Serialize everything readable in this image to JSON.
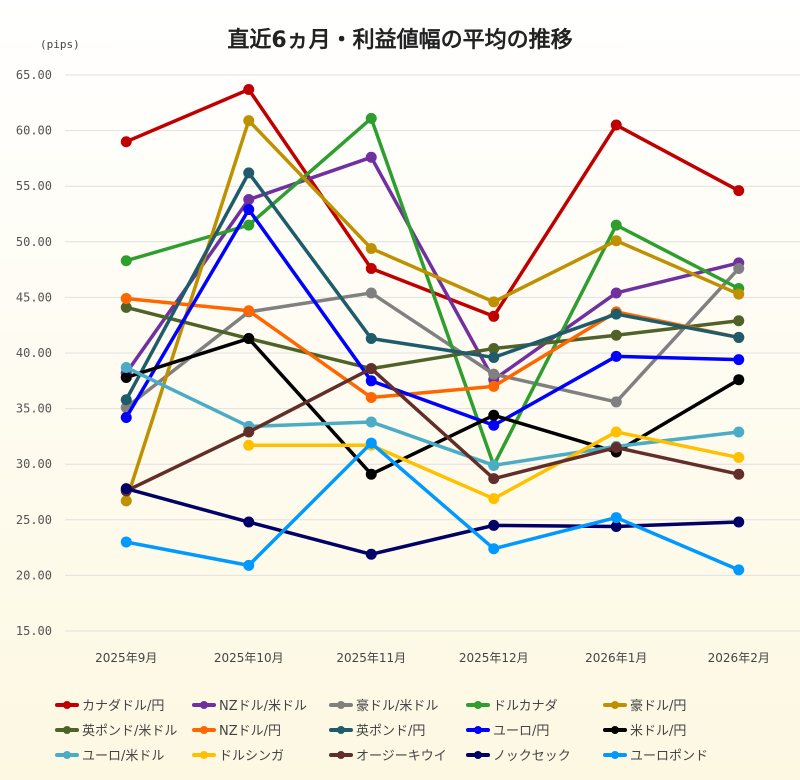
{
  "chart_data": {
    "type": "line",
    "title": "直近6ヵ月・利益値幅の平均の推移",
    "ylabel": "(pips)",
    "ylim": [
      15,
      65
    ],
    "yticks": [
      "15.00",
      "20.00",
      "25.00",
      "30.00",
      "35.00",
      "40.00",
      "45.00",
      "50.00",
      "55.00",
      "60.00",
      "65.00"
    ],
    "categories": [
      "2025年9月",
      "2025年10月",
      "2025年11月",
      "2025年12月",
      "2026年1月",
      "2026年2月"
    ],
    "grid": true,
    "legend": "bottom",
    "series": [
      {
        "name": "カナダドル/円",
        "color": "#c00000",
        "values": [
          59.0,
          63.7,
          47.6,
          43.3,
          60.5,
          54.6
        ]
      },
      {
        "name": "NZドル/米ドル",
        "color": "#7030a0",
        "values": [
          38.2,
          53.8,
          57.6,
          37.6,
          45.4,
          48.1
        ]
      },
      {
        "name": "豪ドル/米ドル",
        "color": "#808080",
        "values": [
          35.1,
          43.7,
          45.4,
          38.1,
          35.6,
          47.6
        ]
      },
      {
        "name": "ドルカナダ",
        "color": "#2e9e2e",
        "values": [
          48.3,
          51.5,
          61.1,
          29.9,
          51.5,
          45.8
        ]
      },
      {
        "name": "豪ドル/円",
        "color": "#bf9000",
        "values": [
          26.7,
          60.9,
          49.4,
          44.6,
          50.1,
          45.3
        ]
      },
      {
        "name": "英ポンド/米ドル",
        "color": "#4f6228",
        "values": [
          44.1,
          41.3,
          38.6,
          40.4,
          41.6,
          42.9
        ]
      },
      {
        "name": "NZドル/円",
        "color": "#ff6600",
        "values": [
          44.9,
          43.8,
          36.0,
          37.0,
          43.7,
          41.4
        ]
      },
      {
        "name": "英ポンド/円",
        "color": "#1f5c6b",
        "values": [
          35.8,
          56.2,
          41.3,
          39.6,
          43.5,
          41.4
        ]
      },
      {
        "name": "ユーロ/円",
        "color": "#0000ff",
        "values": [
          34.2,
          52.9,
          37.5,
          33.5,
          39.7,
          39.4
        ]
      },
      {
        "name": "米ドル/円",
        "color": "#000000",
        "values": [
          37.8,
          41.3,
          29.1,
          34.4,
          31.1,
          37.6
        ]
      },
      {
        "name": "ユーロ/米ドル",
        "color": "#4bacc6",
        "values": [
          38.7,
          33.4,
          33.8,
          29.9,
          31.6,
          32.9
        ]
      },
      {
        "name": "ドルシンガ",
        "color": "#ffc000",
        "values": [
          null,
          31.7,
          31.7,
          26.9,
          32.9,
          30.6
        ]
      },
      {
        "name": "オージーキウイ",
        "color": "#632e2a",
        "values": [
          27.6,
          32.9,
          38.6,
          28.7,
          31.5,
          29.1
        ]
      },
      {
        "name": "ノックセック",
        "color": "#000066",
        "values": [
          27.8,
          24.8,
          21.9,
          24.5,
          24.4,
          24.8
        ]
      },
      {
        "name": "ユーロポンド",
        "color": "#0099ff",
        "values": [
          23.0,
          20.9,
          31.9,
          22.4,
          25.2,
          20.5
        ]
      }
    ]
  }
}
